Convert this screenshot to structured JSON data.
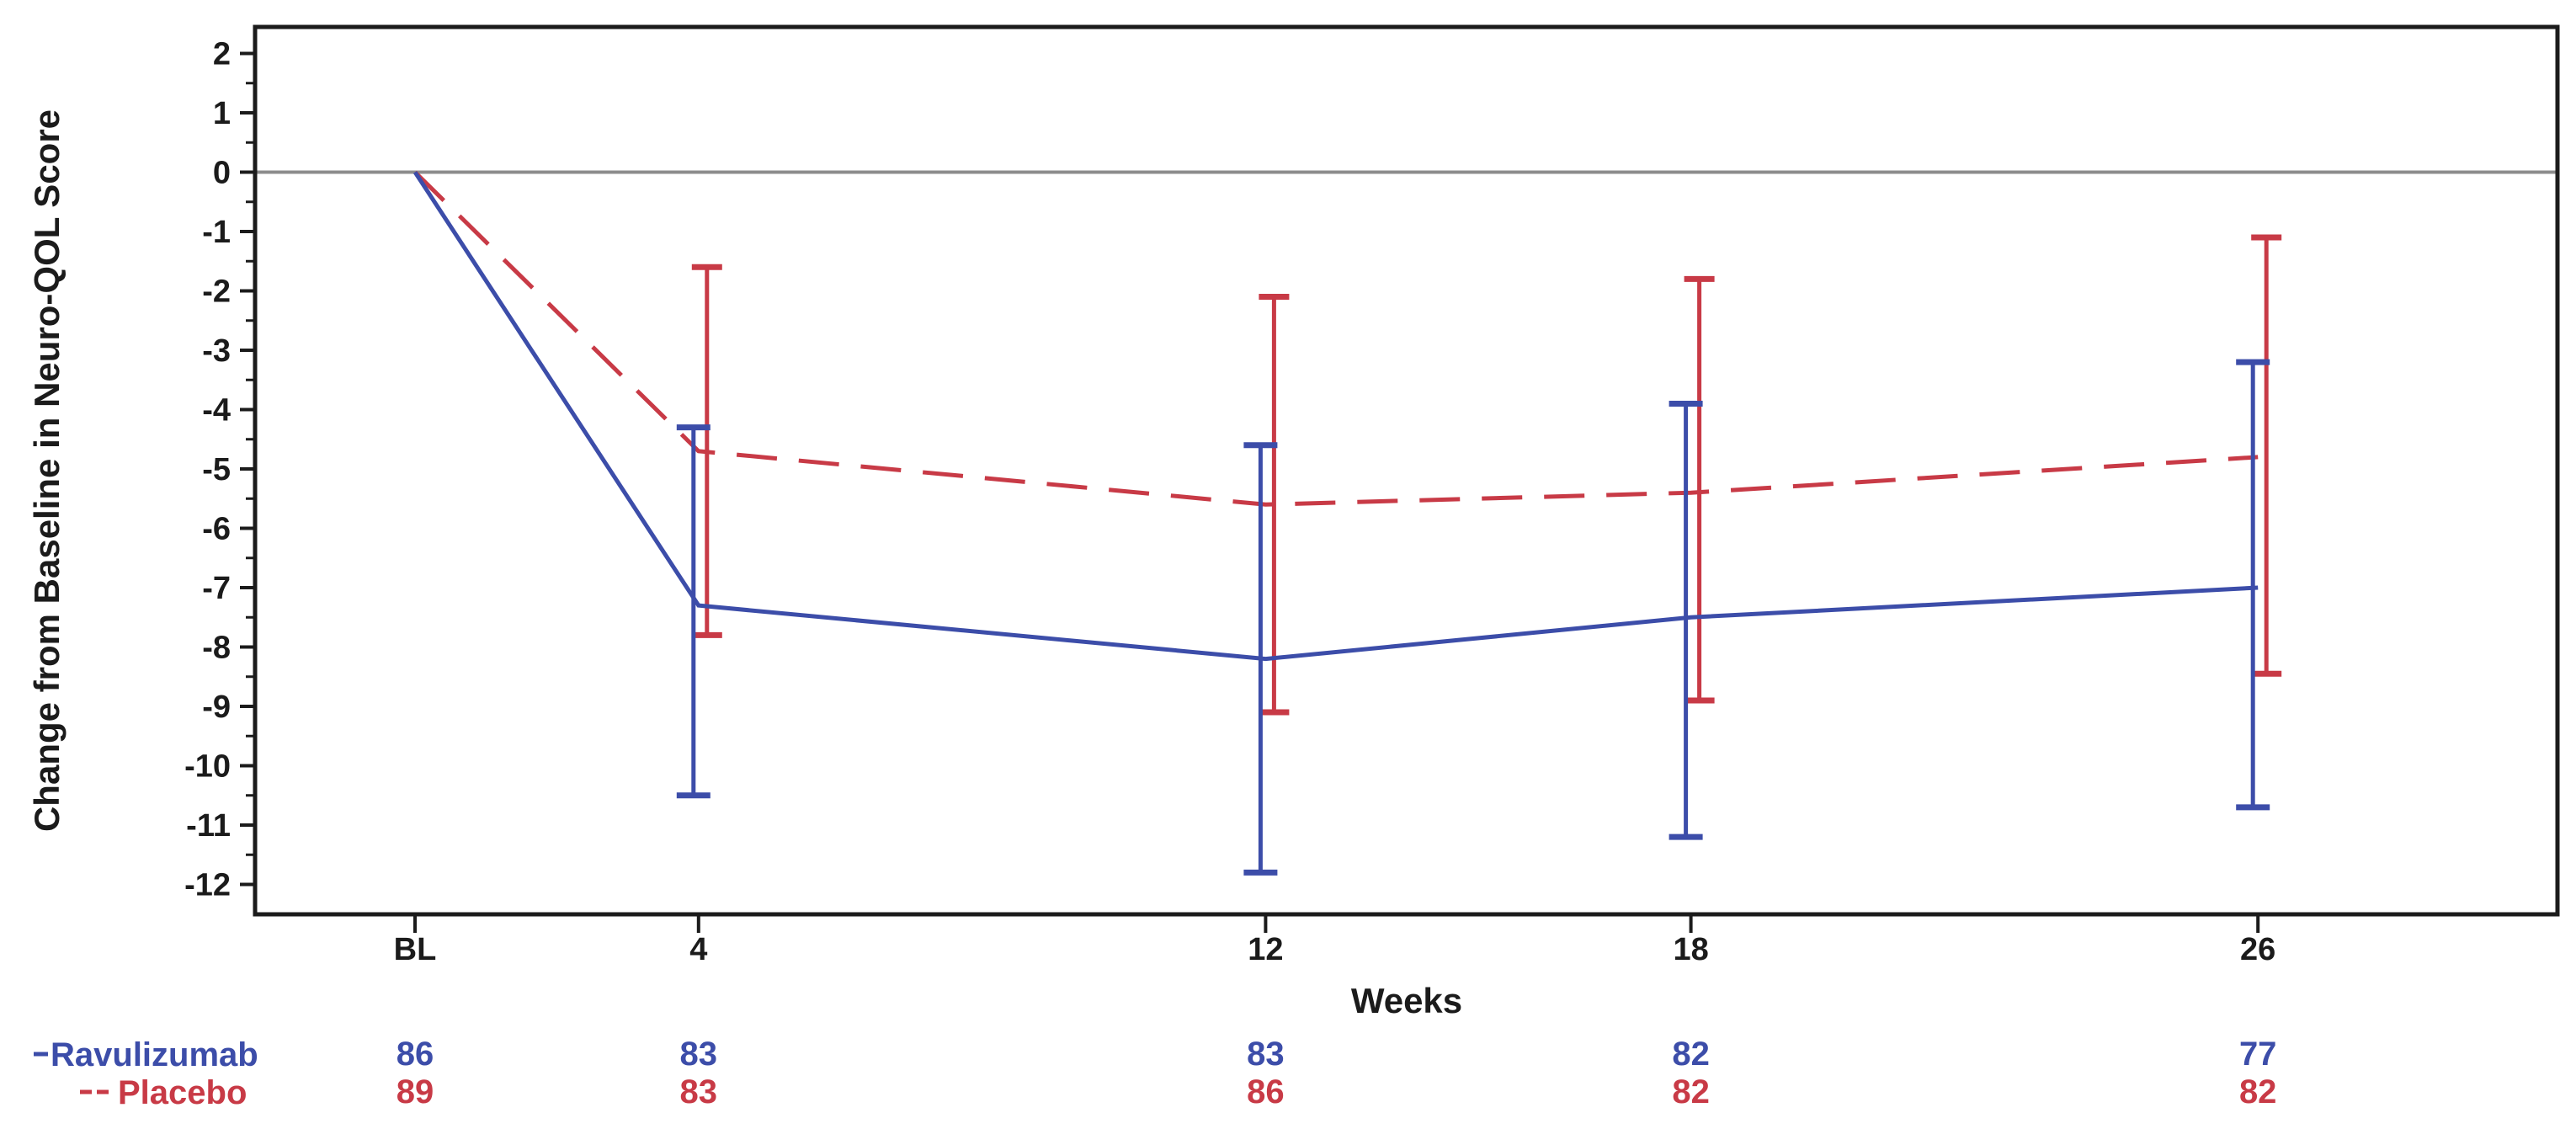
{
  "figure": {
    "background_color": "#ffffff",
    "y_axis": {
      "title": "Change from Baseline in Neuro-QOL Score",
      "tick_labels": [
        "2",
        "1",
        "0",
        "-1",
        "-2",
        "-3",
        "-4",
        "-5",
        "-6",
        "-7",
        "-8",
        "-9",
        "-10",
        "-11",
        "-12"
      ],
      "minor_tick_step": 0.5
    },
    "x_axis": {
      "title": "Weeks",
      "tick_labels": [
        "BL",
        "4",
        "12",
        "18",
        "26"
      ]
    },
    "zero_reference_line": true
  },
  "chart_data": {
    "type": "line",
    "title": "",
    "xlabel": "Weeks",
    "ylabel": "Change from Baseline in Neuro-QOL Score",
    "x_categories": [
      "BL",
      "4",
      "12",
      "18",
      "26"
    ],
    "x_weeks": [
      0,
      4,
      12,
      18,
      26
    ],
    "ylim": [
      -12.5,
      2.45
    ],
    "y_major_step": 1,
    "y_minor_step": 0.5,
    "grid": false,
    "legend_position": "bottom-left",
    "error_bars": "95% CI whiskers with caps",
    "series": [
      {
        "name": "Ravulizumab",
        "line_style": "solid",
        "color": "#3c4da9",
        "values": [
          0,
          -7.3,
          -8.2,
          -7.5,
          -7.0
        ],
        "ci_lower": [
          null,
          -10.5,
          -11.8,
          -11.2,
          -10.7
        ],
        "ci_upper": [
          null,
          -4.3,
          -4.6,
          -3.9,
          -3.2
        ],
        "n_counts": [
          "86",
          "83",
          "83",
          "82",
          "77"
        ]
      },
      {
        "name": "Placebo",
        "line_style": "dashed",
        "color": "#c83a46",
        "values": [
          0,
          -4.7,
          -5.6,
          -5.4,
          -4.8
        ],
        "ci_lower": [
          null,
          -7.8,
          -9.1,
          -8.9,
          -8.45
        ],
        "ci_upper": [
          null,
          -1.6,
          -2.1,
          -1.8,
          -1.1
        ],
        "n_counts": [
          "89",
          "83",
          "86",
          "82",
          "82"
        ]
      }
    ],
    "colors": {
      "axis": "#1b1b1b",
      "zero_line": "#8c8c8c"
    }
  }
}
